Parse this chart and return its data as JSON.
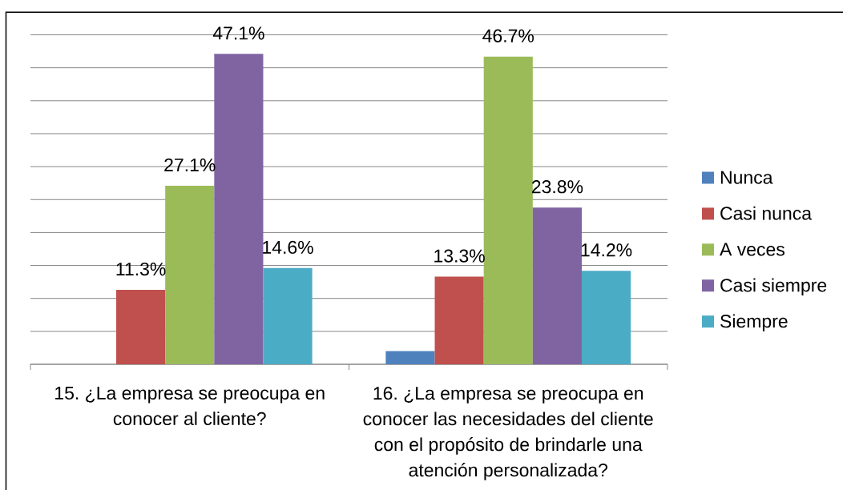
{
  "chart_data": {
    "type": "bar",
    "categories": [
      "15. ¿La empresa se preocupa en conocer al cliente?",
      "16. ¿La empresa se preocupa en conocer las necesidades del cliente con el propósito de brindarle una atención personalizada?"
    ],
    "series": [
      {
        "name": "Nunca",
        "color": "#4f81bd",
        "values": [
          null,
          2
        ]
      },
      {
        "name": "Casi nunca",
        "color": "#c0504d",
        "values": [
          11.3,
          13.3
        ],
        "value_labels": [
          "11.3%",
          "13.3%"
        ]
      },
      {
        "name": "A veces",
        "color": "#9bbb59",
        "values": [
          27.1,
          46.7
        ],
        "value_labels": [
          "27.1%",
          "46.7%"
        ]
      },
      {
        "name": "Casi siempre",
        "color": "#8064a2",
        "values": [
          47.1,
          23.8
        ],
        "value_labels": [
          "47.1%",
          "23.8%"
        ]
      },
      {
        "name": "Siempre",
        "color": "#4bacc6",
        "values": [
          14.6,
          14.2
        ],
        "value_labels": [
          "14.6%",
          "14.2%"
        ]
      }
    ],
    "ylim": [
      0,
      50
    ],
    "yticks": [
      {
        "value": 0,
        "label": null
      },
      {
        "value": 5,
        "label": null
      },
      {
        "value": 10,
        "label": null
      },
      {
        "value": 15,
        "label": null
      },
      {
        "value": 20,
        "label": null
      },
      {
        "value": 25,
        "label": null
      },
      {
        "value": 30,
        "label": null
      },
      {
        "value": 35,
        "label": null
      },
      {
        "value": 40,
        "label": null
      },
      {
        "value": 45,
        "label": null
      },
      {
        "value": 50,
        "label": null
      }
    ],
    "grid": "y",
    "legend": "right",
    "tick_labels": "x"
  }
}
